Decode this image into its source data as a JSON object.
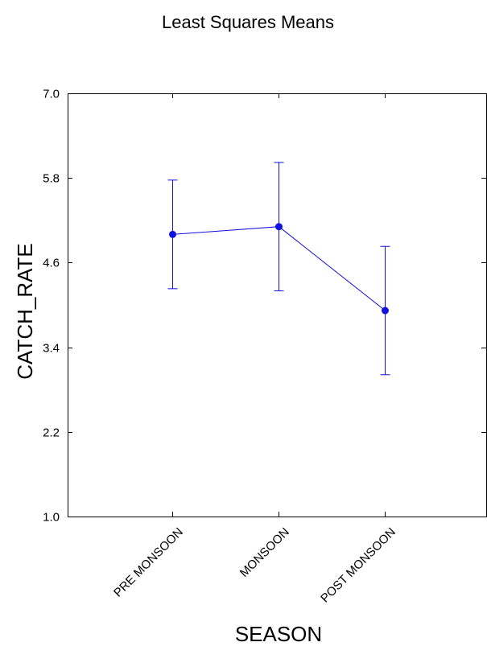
{
  "chart_data": {
    "type": "line",
    "title": "Least Squares Means",
    "xlabel": "SEASON",
    "ylabel": "CATCH_RATE",
    "categories": [
      "PRE MONSOON",
      "MONSOON",
      "POST MONSOON"
    ],
    "y_ticks": [
      "1.0",
      "2.2",
      "3.4",
      "4.6",
      "5.8",
      "7.0"
    ],
    "ylim": [
      1.0,
      7.0
    ],
    "grid": false,
    "legend": "none",
    "series": [
      {
        "values": [
          5.0,
          5.11,
          3.92
        ],
        "lower": [
          4.23,
          4.2,
          3.01
        ],
        "upper": [
          5.77,
          6.02,
          4.83
        ]
      }
    ],
    "colors": {
      "series": "#1010e0",
      "axis": "#000000"
    }
  }
}
